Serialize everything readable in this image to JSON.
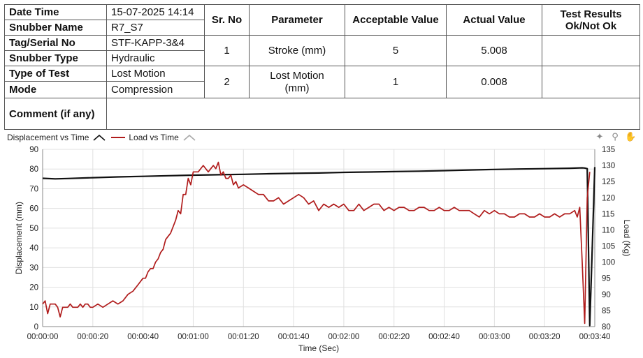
{
  "info": {
    "labels": {
      "date_time": "Date Time",
      "snubber_name": "Snubber Name",
      "tag_serial": "Tag/Serial No",
      "snubber_type": "Snubber Type",
      "type_of_test": "Type of Test",
      "mode": "Mode",
      "comment": "Comment (if any)"
    },
    "values": {
      "date_time": "15-07-2025 14:14",
      "snubber_name": "R7_S7",
      "tag_serial": "STF-KAPP-3&4",
      "snubber_type": "Hydraulic",
      "type_of_test": "Lost Motion",
      "mode": "Compression",
      "comment": ""
    }
  },
  "results": {
    "headers": {
      "sr_no": "Sr. No",
      "parameter": "Parameter",
      "acceptable": "Acceptable Value",
      "actual": "Actual Value",
      "test_results": "Test Results Ok/Not Ok"
    },
    "rows": [
      {
        "sr_no": "1",
        "parameter": "Stroke (mm)",
        "acceptable": "5",
        "actual": "5.008",
        "result": ""
      },
      {
        "sr_no": "2",
        "parameter": "Lost Motion (mm)",
        "acceptable": "1",
        "actual": "0.008",
        "result": ""
      }
    ]
  },
  "legend": {
    "displacement": "Displacement vs Time",
    "load": "Load vs Time"
  },
  "colors": {
    "displacement": "#111111",
    "load": "#b01c1c",
    "grid": "#e0e0e0"
  },
  "chart_data": {
    "type": "line",
    "xlabel": "Time (Sec)",
    "ylabel": "Displacement (mm)",
    "y2label": "Load (Kg)",
    "xlim": [
      0,
      220
    ],
    "ylim": [
      0,
      90
    ],
    "y2lim": [
      80,
      135
    ],
    "x_ticks": [
      0,
      20,
      40,
      60,
      80,
      100,
      120,
      140,
      160,
      180,
      200,
      220
    ],
    "x_tick_labels": [
      "00:00:00",
      "00:00:20",
      "00:00:40",
      "00:01:00",
      "00:01:20",
      "00:01:40",
      "00:02:00",
      "00:02:20",
      "00:02:40",
      "00:03:00",
      "00:03:20",
      "00:03:40"
    ],
    "y_ticks": [
      0,
      10,
      20,
      30,
      40,
      50,
      60,
      70,
      80,
      90
    ],
    "y2_ticks": [
      80,
      85,
      90,
      95,
      100,
      105,
      110,
      115,
      120,
      125,
      130,
      135
    ],
    "series": [
      {
        "name": "Displacement vs Time",
        "axis": "left",
        "x": [
          0,
          5,
          10,
          20,
          30,
          40,
          50,
          60,
          70,
          80,
          90,
          100,
          110,
          120,
          130,
          140,
          150,
          160,
          170,
          180,
          190,
          200,
          210,
          215,
          216,
          217,
          218,
          219,
          220
        ],
        "y": [
          75.3,
          75.0,
          75.2,
          75.6,
          76.0,
          76.3,
          76.6,
          76.9,
          77.1,
          77.3,
          77.6,
          77.8,
          78.0,
          78.3,
          78.5,
          78.7,
          78.9,
          79.2,
          79.5,
          79.8,
          80.0,
          80.2,
          80.4,
          80.6,
          80.5,
          80.2,
          0.5,
          40.0,
          81.0
        ]
      },
      {
        "name": "Load vs Time",
        "axis": "right",
        "x": [
          0,
          1,
          2,
          3,
          4,
          5,
          6,
          7,
          8,
          9,
          10,
          11,
          12,
          13,
          14,
          15,
          16,
          17,
          18,
          19,
          20,
          22,
          24,
          26,
          28,
          30,
          32,
          34,
          36,
          38,
          40,
          41,
          42,
          43,
          44,
          45,
          46,
          47,
          48,
          49,
          50,
          51,
          52,
          53,
          54,
          55,
          56,
          57,
          58,
          59,
          60,
          62,
          64,
          66,
          67,
          68,
          69,
          70,
          71,
          72,
          73,
          74,
          75,
          76,
          77,
          78,
          80,
          82,
          84,
          86,
          88,
          90,
          92,
          94,
          96,
          98,
          100,
          102,
          104,
          106,
          108,
          110,
          112,
          114,
          116,
          118,
          120,
          122,
          124,
          126,
          128,
          130,
          132,
          134,
          136,
          138,
          140,
          142,
          144,
          146,
          148,
          150,
          152,
          154,
          156,
          158,
          160,
          162,
          164,
          166,
          168,
          170,
          172,
          174,
          176,
          178,
          180,
          182,
          184,
          186,
          188,
          190,
          192,
          194,
          196,
          198,
          200,
          202,
          204,
          206,
          208,
          210,
          212,
          213,
          214,
          215,
          216,
          217,
          218
        ],
        "y": [
          87,
          88,
          84,
          87,
          87,
          87,
          86,
          83,
          86,
          86,
          86,
          87,
          86,
          86,
          86,
          87,
          86,
          87,
          87,
          86,
          86,
          87,
          86,
          87,
          88,
          87,
          88,
          90,
          91,
          93,
          95,
          95,
          97,
          98,
          98,
          100,
          101,
          103,
          104,
          107,
          108,
          109,
          111,
          113,
          116,
          115,
          121,
          121,
          126,
          124,
          128,
          128,
          130,
          128,
          129,
          130,
          129,
          131,
          127,
          128,
          126,
          126,
          127,
          124,
          125,
          123,
          124,
          123,
          122,
          121,
          121,
          119,
          119,
          120,
          118,
          119,
          120,
          121,
          120,
          118,
          119,
          116,
          118,
          117,
          118,
          117,
          118,
          116,
          116,
          118,
          116,
          117,
          118,
          118,
          116,
          117,
          116,
          117,
          117,
          116,
          116,
          117,
          117,
          116,
          116,
          117,
          116,
          116,
          117,
          116,
          116,
          116,
          115,
          114,
          116,
          115,
          116,
          115,
          115,
          114,
          114,
          115,
          115,
          114,
          114,
          115,
          114,
          114,
          115,
          114,
          115,
          115,
          116,
          114,
          117,
          100,
          81,
          120,
          128
        ]
      }
    ]
  }
}
